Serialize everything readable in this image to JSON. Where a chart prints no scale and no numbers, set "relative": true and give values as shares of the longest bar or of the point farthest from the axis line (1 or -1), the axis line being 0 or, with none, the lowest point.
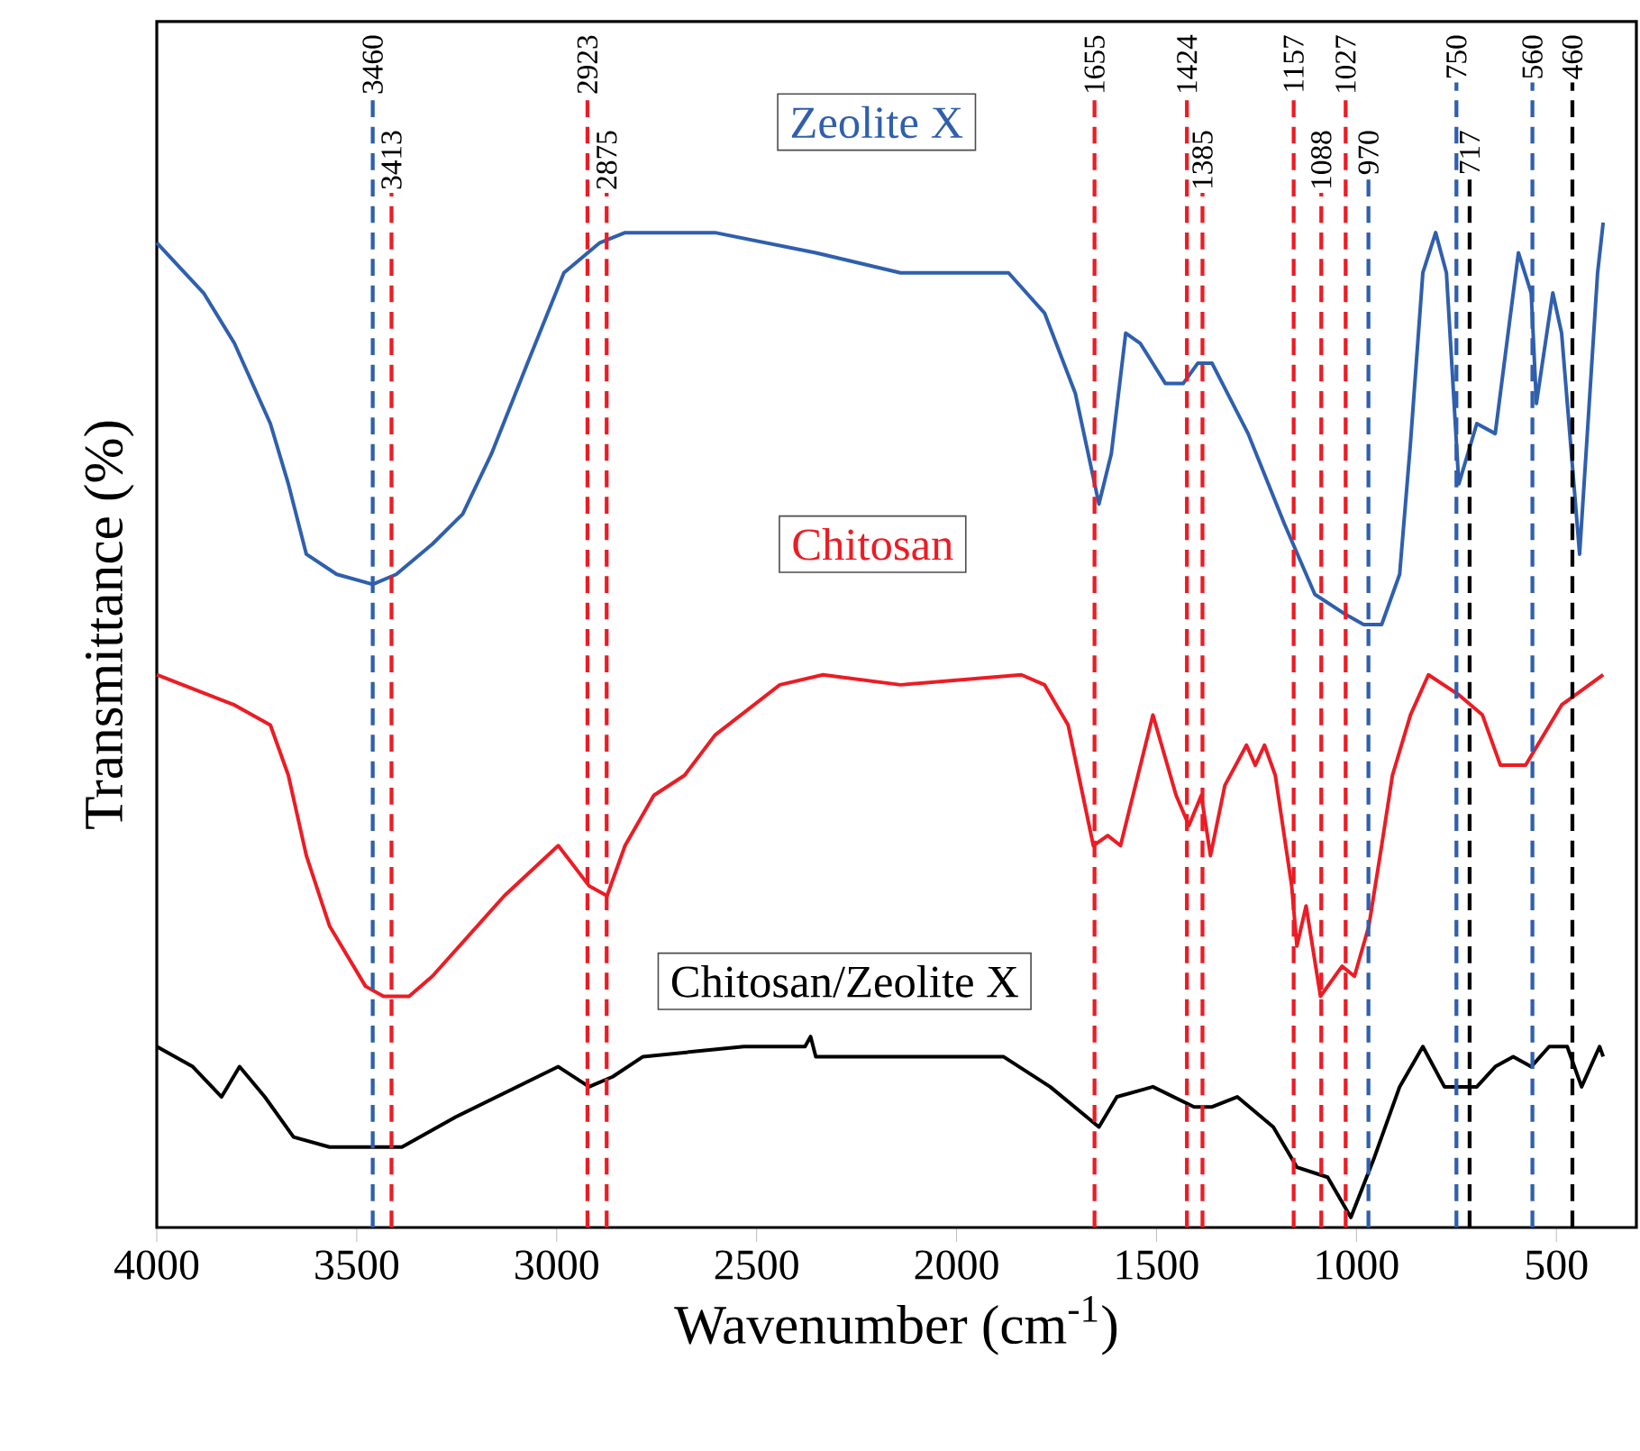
{
  "chart_data": {
    "type": "line",
    "relative": true,
    "xlabel": "Wavenumber (cm$^{-1}$)",
    "ylabel": "Transmittance (%)",
    "xlim": [
      4000,
      300
    ],
    "xticks": [
      4000,
      3500,
      3000,
      2500,
      2000,
      1500,
      1000,
      500
    ],
    "marker": "none",
    "line_style": "solid",
    "series": [
      {
        "name": "Zeolite X",
        "color": "#2f5fae",
        "x": [
          4000,
          3883,
          3806,
          3716,
          3671,
          3626,
          3550,
          3460,
          3401,
          3311,
          3235,
          3163,
          3073,
          2982,
          2892,
          2829,
          2604,
          2352,
          2140,
          1960,
          1870,
          1780,
          1703,
          1644,
          1613,
          1577,
          1541,
          1478,
          1433,
          1397,
          1361,
          1271,
          1180,
          1104,
          1027,
          982,
          937,
          892,
          865,
          834,
          802,
          775,
          744,
          699,
          653,
          595,
          563,
          550,
          509,
          487,
          442,
          397,
          383
        ],
        "values": [
          0.98,
          0.93,
          0.88,
          0.8,
          0.74,
          0.67,
          0.65,
          0.64,
          0.65,
          0.68,
          0.71,
          0.77,
          0.86,
          0.95,
          0.98,
          0.99,
          0.99,
          0.97,
          0.95,
          0.95,
          0.95,
          0.91,
          0.83,
          0.72,
          0.77,
          0.89,
          0.88,
          0.84,
          0.84,
          0.86,
          0.86,
          0.79,
          0.7,
          0.63,
          0.61,
          0.6,
          0.6,
          0.65,
          0.78,
          0.95,
          0.99,
          0.95,
          0.74,
          0.8,
          0.79,
          0.97,
          0.93,
          0.82,
          0.93,
          0.89,
          0.67,
          0.95,
          1.0
        ]
      },
      {
        "name": "Chitosan",
        "color": "#ec1c24",
        "x": [
          4000,
          3806,
          3716,
          3671,
          3626,
          3568,
          3478,
          3433,
          3369,
          3311,
          3131,
          2996,
          2919,
          2874,
          2829,
          2757,
          2680,
          2604,
          2442,
          2334,
          2140,
          1838,
          1780,
          1721,
          1658,
          1622,
          1590,
          1509,
          1451,
          1419,
          1388,
          1365,
          1329,
          1275,
          1253,
          1230,
          1203,
          1162,
          1149,
          1126,
          1090,
          1036,
          1005,
          969,
          937,
          910,
          865,
          820,
          744,
          685,
          640,
          577,
          487,
          383
        ],
        "values": [
          0.55,
          0.52,
          0.5,
          0.45,
          0.37,
          0.3,
          0.24,
          0.23,
          0.23,
          0.25,
          0.33,
          0.38,
          0.34,
          0.33,
          0.38,
          0.43,
          0.45,
          0.49,
          0.54,
          0.55,
          0.54,
          0.55,
          0.54,
          0.5,
          0.38,
          0.39,
          0.38,
          0.51,
          0.43,
          0.4,
          0.43,
          0.37,
          0.44,
          0.48,
          0.46,
          0.48,
          0.45,
          0.34,
          0.28,
          0.32,
          0.23,
          0.26,
          0.25,
          0.3,
          0.38,
          0.45,
          0.51,
          0.55,
          0.53,
          0.51,
          0.46,
          0.46,
          0.52,
          0.55
        ]
      },
      {
        "name": "Chitosan/Zeolite X",
        "color": "#000000",
        "x": [
          4000,
          3910,
          3838,
          3793,
          3730,
          3658,
          3568,
          3446,
          3387,
          3252,
          2996,
          2919,
          2860,
          2784,
          2532,
          2379,
          2365,
          2352,
          2140,
          1883,
          1766,
          1644,
          1599,
          1509,
          1406,
          1361,
          1298,
          1208,
          1149,
          1072,
          1014,
          955,
          892,
          834,
          780,
          699,
          653,
          608,
          563,
          518,
          473,
          437,
          392,
          383
        ],
        "values": [
          0.18,
          0.16,
          0.13,
          0.16,
          0.13,
          0.09,
          0.08,
          0.08,
          0.08,
          0.11,
          0.16,
          0.14,
          0.15,
          0.17,
          0.18,
          0.18,
          0.19,
          0.17,
          0.17,
          0.17,
          0.14,
          0.1,
          0.13,
          0.14,
          0.12,
          0.12,
          0.13,
          0.1,
          0.06,
          0.05,
          0.01,
          0.07,
          0.14,
          0.18,
          0.14,
          0.14,
          0.16,
          0.17,
          0.16,
          0.18,
          0.18,
          0.14,
          0.18,
          0.17
        ]
      }
    ],
    "ref_lines": [
      {
        "axis": "x",
        "value": 3460,
        "label": "3460",
        "color": "#2f5fae",
        "line_style": "dashed"
      },
      {
        "axis": "x",
        "value": 3413,
        "label": "3413",
        "color": "#ec1c24",
        "line_style": "dashed"
      },
      {
        "axis": "x",
        "value": 2923,
        "label": "2923",
        "color": "#ec1c24",
        "line_style": "dashed"
      },
      {
        "axis": "x",
        "value": 2875,
        "label": "2875",
        "color": "#ec1c24",
        "line_style": "dashed"
      },
      {
        "axis": "x",
        "value": 1655,
        "label": "1655",
        "color": "#ec1c24",
        "line_style": "dashed"
      },
      {
        "axis": "x",
        "value": 1424,
        "label": "1424",
        "color": "#ec1c24",
        "line_style": "dashed"
      },
      {
        "axis": "x",
        "value": 1385,
        "label": "1385",
        "color": "#ec1c24",
        "line_style": "dashed"
      },
      {
        "axis": "x",
        "value": 1157,
        "label": "1157",
        "color": "#ec1c24",
        "line_style": "dashed"
      },
      {
        "axis": "x",
        "value": 1088,
        "label": "1088",
        "color": "#ec1c24",
        "line_style": "dashed"
      },
      {
        "axis": "x",
        "value": 1027,
        "label": "1027",
        "color": "#ec1c24",
        "line_style": "dashed"
      },
      {
        "axis": "x",
        "value": 970,
        "label": "970",
        "color": "#2f5fae",
        "line_style": "dashed"
      },
      {
        "axis": "x",
        "value": 750,
        "label": "750",
        "color": "#2f5fae",
        "line_style": "dashed"
      },
      {
        "axis": "x",
        "value": 717,
        "label": "717",
        "color": "#000000",
        "line_style": "dashed"
      },
      {
        "axis": "x",
        "value": 560,
        "label": "560",
        "color": "#2f5fae",
        "line_style": "dashed"
      },
      {
        "axis": "x",
        "value": 460,
        "label": "460",
        "color": "#000000",
        "line_style": "dashed"
      }
    ]
  }
}
